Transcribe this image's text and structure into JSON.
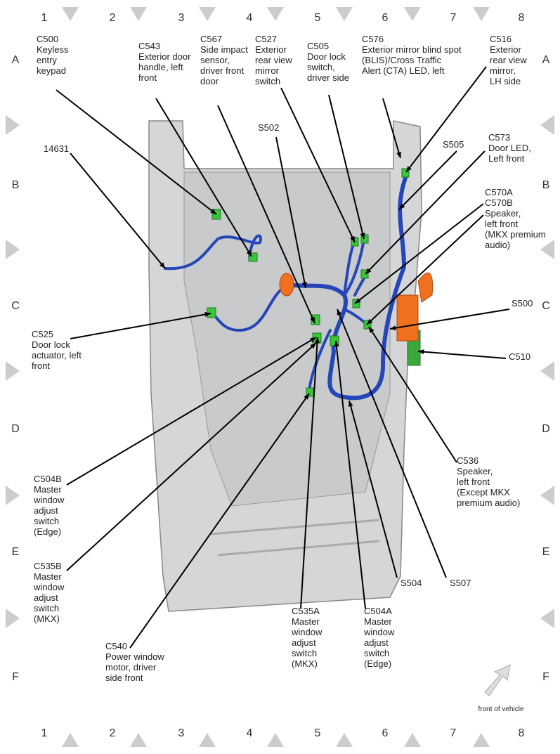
{
  "grid": {
    "columns": [
      "1",
      "2",
      "3",
      "4",
      "5",
      "6",
      "7",
      "8"
    ],
    "rows": [
      "A",
      "B",
      "C",
      "D",
      "E",
      "F"
    ]
  },
  "labels": [
    {
      "lines": [
        "C500",
        "Keyless",
        "entry",
        "keypad"
      ]
    },
    {
      "lines": [
        "C543",
        "Exterior door",
        "handle, left",
        "front"
      ]
    },
    {
      "lines": [
        "C567",
        "Side impact",
        "sensor,",
        "driver front",
        "door"
      ]
    },
    {
      "lines": [
        "C527",
        "Exterior",
        "rear view",
        "mirror",
        "switch"
      ]
    },
    {
      "lines": [
        "C505",
        "Door lock",
        "switch,",
        "driver side"
      ]
    },
    {
      "lines": [
        "C576",
        "Exterior mirror blind spot",
        "(BLIS)/Cross Traffic",
        "Alert (CTA) LED, left"
      ]
    },
    {
      "lines": [
        "C516",
        "Exterior",
        "rear view",
        "mirror,",
        "LH side"
      ]
    },
    {
      "lines": [
        "S505"
      ]
    },
    {
      "lines": [
        "C573",
        "Door LED,",
        "Left front"
      ]
    },
    {
      "lines": [
        "C570A",
        "C570B",
        "Speaker,",
        "left front",
        "(MKX premium",
        "audio)"
      ]
    },
    {
      "lines": [
        "S500"
      ]
    },
    {
      "lines": [
        "C510"
      ]
    },
    {
      "lines": [
        "C536",
        "Speaker,",
        "left front",
        "(Except MKX",
        "premium audio)"
      ]
    },
    {
      "lines": [
        "S507"
      ]
    },
    {
      "lines": [
        "S504"
      ]
    },
    {
      "lines": [
        "C504A",
        "Master",
        "window",
        "adjust",
        "switch",
        "(Edge)"
      ]
    },
    {
      "lines": [
        "C535A",
        "Master",
        "window",
        "adjust",
        "switch",
        "(MKX)"
      ]
    },
    {
      "lines": [
        "C540",
        "Power window",
        "motor, driver",
        "side front"
      ]
    },
    {
      "lines": [
        "C535B",
        "Master",
        "window",
        "adjust",
        "switch",
        "(MKX)"
      ]
    },
    {
      "lines": [
        "C504B",
        "Master",
        "window",
        "adjust",
        "switch",
        "(Edge)"
      ]
    },
    {
      "lines": [
        "C525",
        "Door lock",
        "actuator, left",
        "front"
      ]
    },
    {
      "lines": [
        "14631"
      ]
    },
    {
      "lines": [
        "S502"
      ]
    }
  ],
  "note": "front of vehicle"
}
